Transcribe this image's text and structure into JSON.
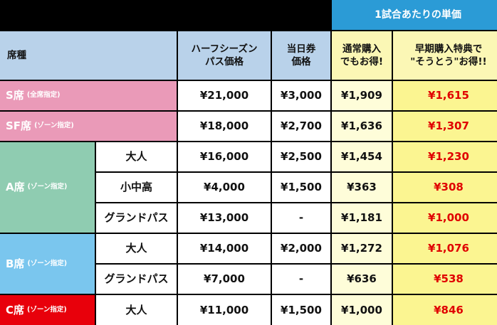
{
  "header": {
    "band": "1試合あたりの単価",
    "seat_label": "席種",
    "half_season_line1": "ハーフシーズン",
    "half_season_line2": "パス価格",
    "day_ticket_line1": "当日券",
    "day_ticket_line2": "価格",
    "normal_line1": "通常購入",
    "normal_line2": "でもお得!",
    "early_line1": "早期購入特典で",
    "early_line2": "\"そうとう\"お得!!"
  },
  "rows": [
    {
      "seat": "S席",
      "seat_note": "(全席指定)",
      "sub": "",
      "half": "¥21,000",
      "day": "¥3,000",
      "normal": "¥1,909",
      "early": "¥1,615"
    },
    {
      "seat": "SF席",
      "seat_note": "(ゾーン指定)",
      "sub": "",
      "half": "¥18,000",
      "day": "¥2,700",
      "normal": "¥1,636",
      "early": "¥1,307"
    },
    {
      "seat": "A席",
      "seat_note": "(ゾーン指定)",
      "sub": "大人",
      "half": "¥16,000",
      "day": "¥2,500",
      "normal": "¥1,454",
      "early": "¥1,230"
    },
    {
      "seat": "",
      "seat_note": "",
      "sub": "小中高",
      "half": "¥4,000",
      "day": "¥1,500",
      "normal": "¥363",
      "early": "¥308"
    },
    {
      "seat": "",
      "seat_note": "",
      "sub": "グランドパス",
      "half": "¥13,000",
      "day": "-",
      "normal": "¥1,181",
      "early": "¥1,000"
    },
    {
      "seat": "B席",
      "seat_note": "(ゾーン指定)",
      "sub": "大人",
      "half": "¥14,000",
      "day": "¥2,000",
      "normal": "¥1,272",
      "early": "¥1,076"
    },
    {
      "seat": "",
      "seat_note": "",
      "sub": "グランドパス",
      "half": "¥7,000",
      "day": "-",
      "normal": "¥636",
      "early": "¥538"
    },
    {
      "seat": "C席",
      "seat_note": "(ゾーン指定)",
      "sub": "大人",
      "half": "¥11,000",
      "day": "¥1,500",
      "normal": "¥1,000",
      "early": "¥846"
    }
  ],
  "colors": {
    "band": "#2b9bd6",
    "header": "#b9d2ea",
    "header_yellow": "#fbf7b5",
    "s_seat": "#ea9ab8",
    "a_seat": "#8fccb1",
    "b_seat": "#7ac6ee",
    "c_seat": "#e8000b",
    "early_price": "#e00000"
  }
}
